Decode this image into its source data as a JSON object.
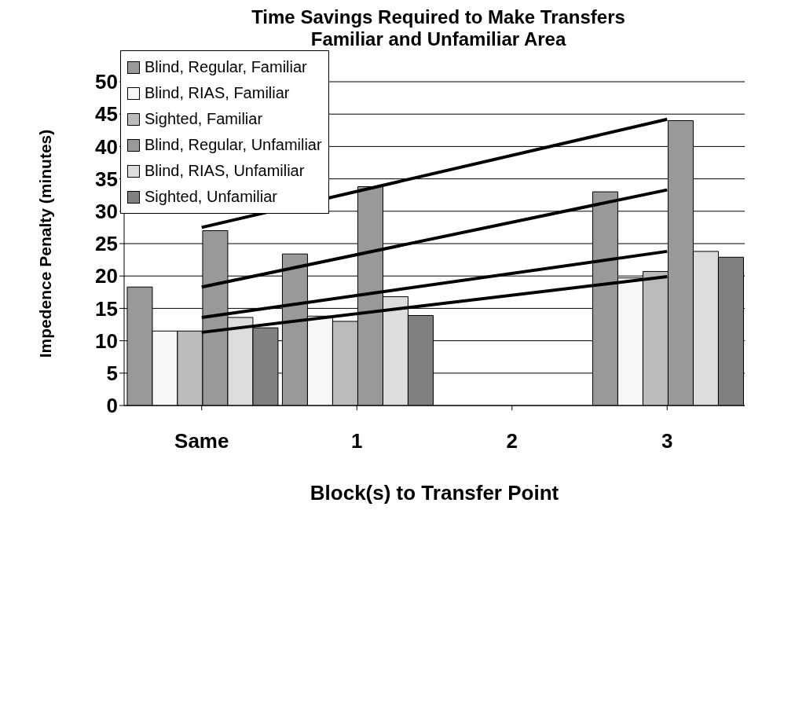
{
  "chart_data": {
    "type": "bar",
    "title": "Time Savings Required to Make Transfers\nFamiliar and Unfamiliar Area",
    "xlabel": "Block(s) to Transfer Point",
    "ylabel": "Impedence Penalty (minutes)",
    "categories": [
      "Same",
      "1",
      "2",
      "3"
    ],
    "ylim": [
      0,
      50
    ],
    "yticks": [
      0,
      5,
      10,
      15,
      20,
      25,
      30,
      35,
      40,
      45,
      50
    ],
    "grid": "y",
    "legend": "top left",
    "series": [
      {
        "name": "Blind, Regular, Familiar",
        "color": "#999999",
        "values": [
          18.3,
          23.4,
          null,
          33
        ]
      },
      {
        "name": "Blind, RIAS, Familiar",
        "color": "#f7f7f7",
        "values": [
          11.5,
          13.8,
          null,
          19.7
        ]
      },
      {
        "name": "Sighted, Familiar",
        "color": "#bbbbbb",
        "values": [
          11.5,
          13,
          null,
          20.7
        ]
      },
      {
        "name": "Blind, Regular, Unfamiliar",
        "color": "#999999",
        "values": [
          27,
          33.8,
          null,
          44
        ]
      },
      {
        "name": "Blind, RIAS, Unfamiliar",
        "color": "#dddddd",
        "values": [
          13.6,
          16.8,
          null,
          23.8
        ]
      },
      {
        "name": "Sighted, Unfamiliar",
        "color": "#808080",
        "values": [
          12,
          13.9,
          null,
          22.9
        ]
      },
      {
        "type": "line",
        "color": "#000000",
        "x": [
          "Same",
          "3"
        ],
        "values": [
          27.5,
          44.2
        ]
      },
      {
        "type": "line",
        "color": "#000000",
        "x": [
          "Same",
          "3"
        ],
        "values": [
          18.3,
          33.3
        ]
      },
      {
        "type": "line",
        "color": "#000000",
        "x": [
          "Same",
          "3"
        ],
        "values": [
          13.6,
          23.8
        ]
      },
      {
        "type": "line",
        "color": "#000000",
        "x": [
          "Same",
          "3"
        ],
        "values": [
          11.3,
          19.9
        ]
      }
    ]
  }
}
